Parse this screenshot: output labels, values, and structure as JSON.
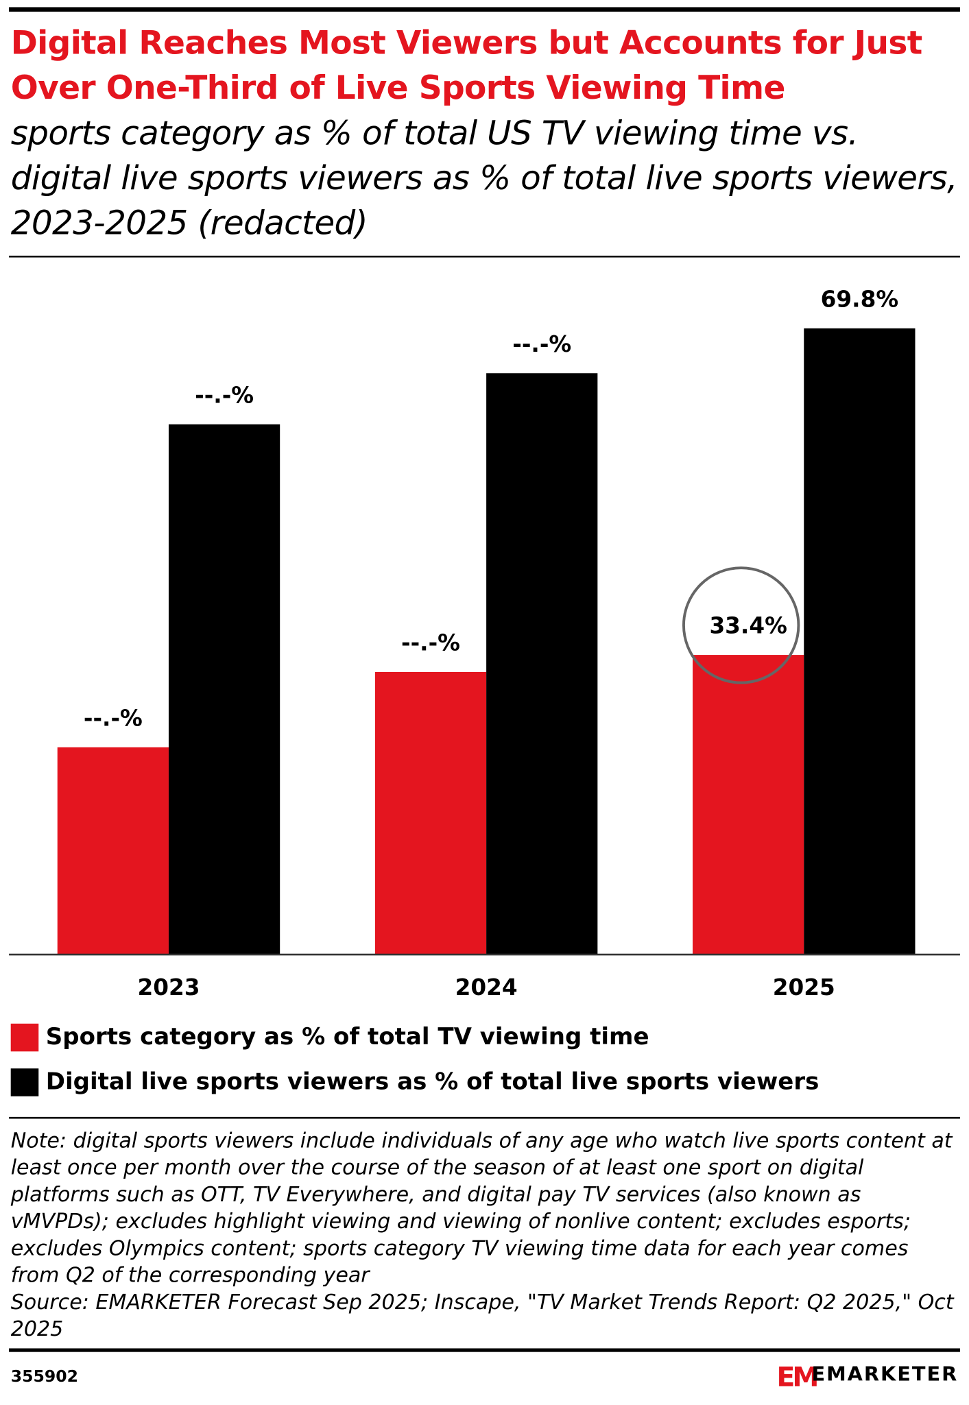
{
  "chart_data": {
    "type": "bar",
    "title": "Digital Reaches Most Viewers but Accounts for Just Over One-Third of Live Sports Viewing Time",
    "subtitle": "sports category as % of total US TV viewing time vs. digital live sports viewers as % of total live sports viewers, 2023-2025 (redacted)",
    "categories": [
      "2023",
      "2024",
      "2025"
    ],
    "series": [
      {
        "name": "Sports category as % of total TV viewing time",
        "color": "#e4151f",
        "values": [
          23.1,
          31.5,
          33.4
        ],
        "value_labels": [
          "--.-%",
          "--.-%",
          "33.4%"
        ]
      },
      {
        "name": "Digital live sports viewers as % of total live sports viewers",
        "color": "#000000",
        "values": [
          59.1,
          64.8,
          69.8
        ],
        "value_labels": [
          "--.-%",
          "--.-%",
          "69.8%"
        ]
      }
    ],
    "note": "Note: digital sports viewers include individuals of any age who watch live sports content at least once per month over the course of the season of at least one sport on digital platforms such as OTT, TV Everywhere, and digital pay TV services (also known as vMVPDs); excludes highlight viewing and viewing of nonlive content; excludes esports; excludes Olympics content; sports category TV viewing time data for each year comes from Q2 of the corresponding year",
    "source": "Source: EMARKETER Forecast Sep 2025; Inscape, \"TV Market Trends Report: Q2 2025,\" Oct 2025",
    "chart_id": "355902",
    "brand": "EMARKETER"
  }
}
